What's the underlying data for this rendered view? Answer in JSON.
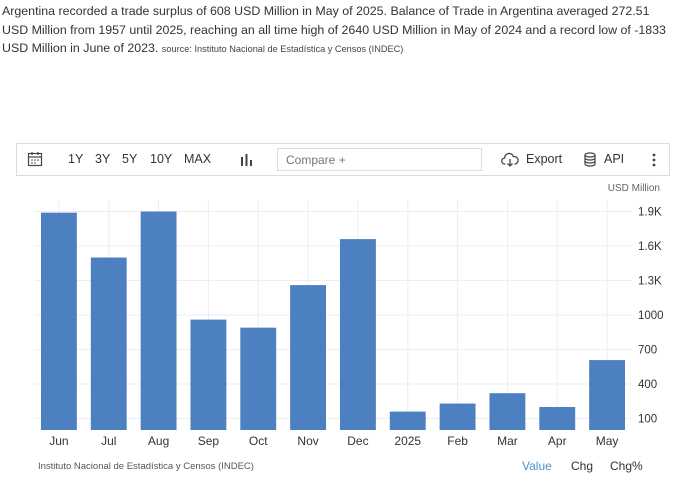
{
  "intro": {
    "text": "Argentina recorded a trade surplus of 608 USD Million in May of 2025. Balance of Trade in Argentina averaged 272.51 USD Million from 1957 until 2025, reaching an all time high of 2640 USD Million in May of 2024 and a record low of -1833 USD Million in June of 2023.",
    "source": "source: Instituto Nacional de Estadística y Censos (INDEC)"
  },
  "toolbar": {
    "ranges": [
      "1Y",
      "3Y",
      "5Y",
      "10Y",
      "MAX"
    ],
    "compare_placeholder": "Compare +",
    "export_label": "Export",
    "api_label": "API",
    "icons": [
      "calendar-icon",
      "bar-chart-icon",
      "download-cloud-icon",
      "database-icon",
      "more-vertical-icon"
    ]
  },
  "chart_data": {
    "type": "bar",
    "unit": "USD Million",
    "categories": [
      "Jun",
      "Jul",
      "Aug",
      "Sep",
      "Oct",
      "Nov",
      "Dec",
      "2025",
      "Feb",
      "Mar",
      "Apr",
      "May"
    ],
    "values": [
      1890,
      1500,
      1900,
      960,
      890,
      1260,
      1660,
      160,
      230,
      320,
      200,
      608
    ],
    "y_ticks": [
      "1.9K",
      "1.6K",
      "1.3K",
      "1000",
      "700",
      "400",
      "100"
    ],
    "y_tick_values": [
      1900,
      1600,
      1300,
      1000,
      700,
      400,
      100
    ],
    "ylim": [
      0,
      2000
    ],
    "grid": true,
    "bar_color": "#4d80c1"
  },
  "footer": {
    "source": "Instituto Nacional de Estadística y Censos (INDEC)",
    "tabs": [
      "Value",
      "Chg",
      "Chg%"
    ],
    "active_tab": "Value",
    "active_color": "#4a90c9"
  }
}
